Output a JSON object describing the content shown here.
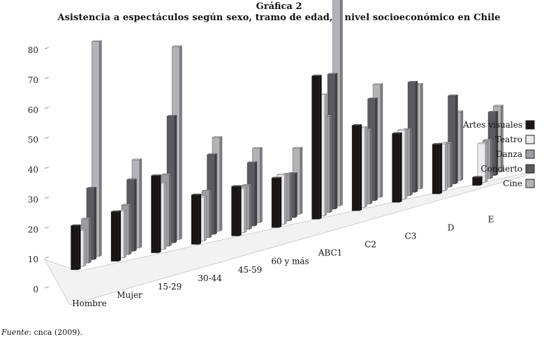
{
  "header": {
    "figure_number": "Gráfica 2",
    "title": "Asistencia a espectáculos según sexo, tramo de edad, y nivel socioeconómico en Chile"
  },
  "source": {
    "label": "Fuente",
    "text": ": cnca (2009)."
  },
  "chart_data": {
    "type": "bar",
    "style": "3d-clustered",
    "title": "Asistencia a espectáculos según sexo, tramo de edad, y nivel socioeconómico en Chile",
    "xlabel": "",
    "ylabel": "",
    "ylim": [
      0,
      80
    ],
    "yticks": [
      0,
      10,
      20,
      30,
      40,
      50,
      60,
      70,
      80
    ],
    "grid": false,
    "legend_position": "right",
    "categories": [
      "Hombre",
      "Mujer",
      "15-29",
      "30-44",
      "45-59",
      "60 y más",
      "ABC1",
      "C2",
      "C3",
      "D",
      "E"
    ],
    "series": [
      {
        "name": "Artes visuales",
        "color": "#1a1616",
        "values": [
          16,
          18,
          28,
          18,
          18,
          18,
          52,
          31,
          25,
          18,
          3
        ]
      },
      {
        "name": "Teatro",
        "color": "#ebebed",
        "values": [
          13,
          17,
          24,
          16,
          16,
          18,
          44,
          29,
          25,
          17,
          14
        ]
      },
      {
        "name": "Danza",
        "color": "#9d9ca1",
        "values": [
          16,
          18,
          26,
          17,
          16,
          17,
          35,
          27,
          24,
          16,
          14
        ]
      },
      {
        "name": "Concierto",
        "color": "#5b5a5f",
        "values": [
          26,
          26,
          46,
          29,
          23,
          16,
          49,
          37,
          40,
          32,
          23
        ]
      },
      {
        "name": "Cine",
        "color": "#b3b2b7",
        "values": [
          78,
          32,
          70,
          34,
          27,
          24,
          77,
          41,
          38,
          25,
          24
        ]
      }
    ]
  }
}
